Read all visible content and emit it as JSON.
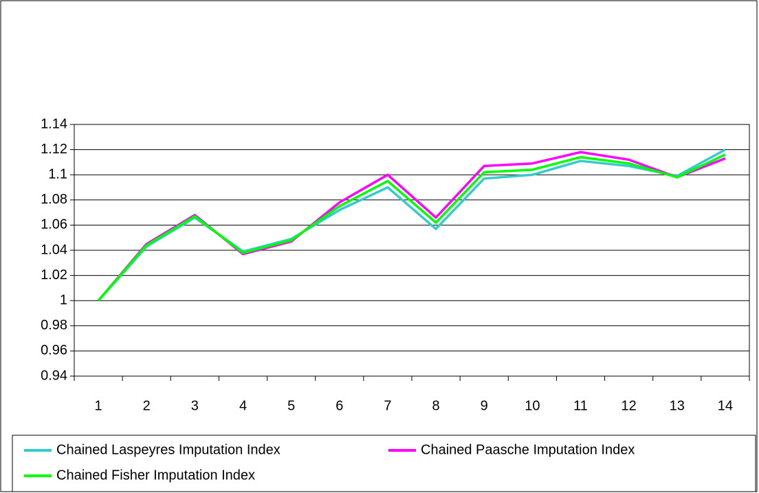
{
  "chart_data": {
    "type": "line",
    "categories": [
      "1",
      "2",
      "3",
      "4",
      "5",
      "6",
      "7",
      "8",
      "9",
      "10",
      "11",
      "12",
      "13",
      "14"
    ],
    "series": [
      {
        "name": "Chained Laspeyres Imputation Index",
        "color": "#33cccc",
        "values": [
          1,
          1.043,
          1.066,
          1.039,
          1.049,
          1.072,
          1.09,
          1.057,
          1.097,
          1.1,
          1.111,
          1.107,
          1.099,
          1.12
        ]
      },
      {
        "name": "Chained Paasche Imputation Index",
        "color": "#ff00ff",
        "values": [
          1,
          1.045,
          1.068,
          1.037,
          1.047,
          1.078,
          1.1,
          1.066,
          1.107,
          1.109,
          1.118,
          1.112,
          1.098,
          1.113
        ]
      },
      {
        "name": "Chained Fisher Imputation Index",
        "color": "#00ff00",
        "values": [
          1,
          1.044,
          1.067,
          1.038,
          1.048,
          1.075,
          1.095,
          1.062,
          1.102,
          1.104,
          1.114,
          1.109,
          1.098,
          1.116
        ]
      }
    ],
    "ylim": [
      0.94,
      1.14
    ],
    "yticks": [
      0.94,
      0.96,
      0.98,
      1,
      1.02,
      1.04,
      1.06,
      1.08,
      1.1,
      1.12,
      1.14
    ],
    "grid": true
  }
}
